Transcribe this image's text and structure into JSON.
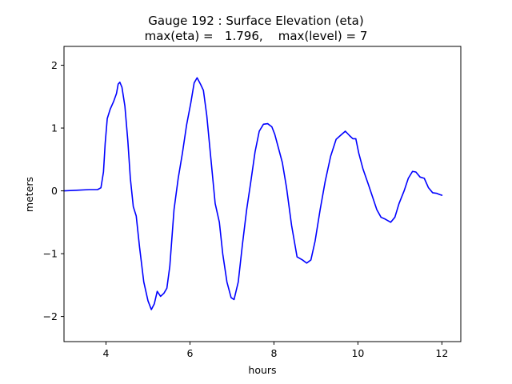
{
  "chart_data": {
    "type": "line",
    "title_lines": [
      "Gauge 192 : Surface Elevation (eta)",
      "max(eta) =   1.796,    max(level) = 7"
    ],
    "xlabel": "hours",
    "ylabel": "meters",
    "xlim": [
      3.0,
      12.45
    ],
    "ylim": [
      -2.4,
      2.3
    ],
    "xticks": [
      4,
      6,
      8,
      10,
      12
    ],
    "xtick_labels": [
      "4",
      "6",
      "8",
      "10",
      "12"
    ],
    "yticks": [
      2,
      1,
      0,
      -1,
      -2
    ],
    "ytick_labels": [
      "2",
      "1",
      "0",
      "−1",
      "−2"
    ],
    "series": [
      {
        "name": "eta",
        "color": "#0000ff",
        "points": [
          [
            3.0,
            0.0
          ],
          [
            3.3,
            0.01
          ],
          [
            3.6,
            0.02
          ],
          [
            3.8,
            0.02
          ],
          [
            3.88,
            0.05
          ],
          [
            3.94,
            0.3
          ],
          [
            3.98,
            0.75
          ],
          [
            4.03,
            1.15
          ],
          [
            4.1,
            1.3
          ],
          [
            4.18,
            1.42
          ],
          [
            4.25,
            1.55
          ],
          [
            4.29,
            1.7
          ],
          [
            4.33,
            1.73
          ],
          [
            4.38,
            1.65
          ],
          [
            4.45,
            1.35
          ],
          [
            4.52,
            0.8
          ],
          [
            4.58,
            0.2
          ],
          [
            4.65,
            -0.25
          ],
          [
            4.72,
            -0.4
          ],
          [
            4.8,
            -0.9
          ],
          [
            4.9,
            -1.45
          ],
          [
            5.0,
            -1.75
          ],
          [
            5.08,
            -1.89
          ],
          [
            5.15,
            -1.8
          ],
          [
            5.22,
            -1.6
          ],
          [
            5.3,
            -1.68
          ],
          [
            5.38,
            -1.63
          ],
          [
            5.45,
            -1.55
          ],
          [
            5.52,
            -1.2
          ],
          [
            5.62,
            -0.3
          ],
          [
            5.72,
            0.2
          ],
          [
            5.82,
            0.6
          ],
          [
            5.92,
            1.05
          ],
          [
            6.02,
            1.4
          ],
          [
            6.1,
            1.72
          ],
          [
            6.17,
            1.8
          ],
          [
            6.25,
            1.7
          ],
          [
            6.32,
            1.6
          ],
          [
            6.4,
            1.2
          ],
          [
            6.5,
            0.5
          ],
          [
            6.6,
            -0.2
          ],
          [
            6.7,
            -0.5
          ],
          [
            6.78,
            -1.0
          ],
          [
            6.88,
            -1.45
          ],
          [
            6.98,
            -1.7
          ],
          [
            7.05,
            -1.73
          ],
          [
            7.15,
            -1.45
          ],
          [
            7.25,
            -0.85
          ],
          [
            7.35,
            -0.3
          ],
          [
            7.45,
            0.15
          ],
          [
            7.55,
            0.62
          ],
          [
            7.65,
            0.95
          ],
          [
            7.75,
            1.06
          ],
          [
            7.85,
            1.07
          ],
          [
            7.95,
            1.02
          ],
          [
            8.02,
            0.9
          ],
          [
            8.1,
            0.7
          ],
          [
            8.2,
            0.45
          ],
          [
            8.3,
            0.05
          ],
          [
            8.42,
            -0.55
          ],
          [
            8.55,
            -1.05
          ],
          [
            8.68,
            -1.1
          ],
          [
            8.78,
            -1.15
          ],
          [
            8.88,
            -1.1
          ],
          [
            8.98,
            -0.8
          ],
          [
            9.1,
            -0.3
          ],
          [
            9.22,
            0.15
          ],
          [
            9.35,
            0.55
          ],
          [
            9.48,
            0.82
          ],
          [
            9.58,
            0.88
          ],
          [
            9.7,
            0.95
          ],
          [
            9.8,
            0.88
          ],
          [
            9.88,
            0.83
          ],
          [
            9.95,
            0.83
          ],
          [
            10.02,
            0.6
          ],
          [
            10.12,
            0.35
          ],
          [
            10.25,
            0.1
          ],
          [
            10.35,
            -0.1
          ],
          [
            10.45,
            -0.3
          ],
          [
            10.55,
            -0.42
          ],
          [
            10.65,
            -0.45
          ],
          [
            10.78,
            -0.5
          ],
          [
            10.88,
            -0.42
          ],
          [
            10.98,
            -0.2
          ],
          [
            11.1,
            0.0
          ],
          [
            11.2,
            0.2
          ],
          [
            11.3,
            0.31
          ],
          [
            11.38,
            0.3
          ],
          [
            11.48,
            0.22
          ],
          [
            11.58,
            0.2
          ],
          [
            11.68,
            0.05
          ],
          [
            11.78,
            -0.03
          ],
          [
            11.88,
            -0.04
          ],
          [
            11.95,
            -0.06
          ],
          [
            12.0,
            -0.07
          ]
        ]
      }
    ]
  }
}
